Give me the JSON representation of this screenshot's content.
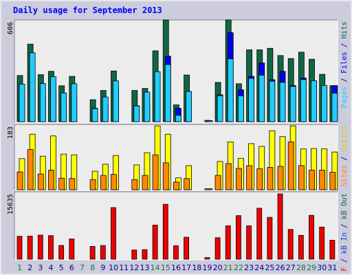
{
  "title": "Daily usage for September 2013",
  "colors": {
    "background": "#ccccdd",
    "plot": "#ececec",
    "title": "#0000ff",
    "pages": "#22ccff",
    "files": "#0000ee",
    "hits": "#116644",
    "visits": "#ffff00",
    "sites": "#ff8800",
    "kbin": "#1144cc",
    "kbout": "#116644",
    "kbf": "#ee0000",
    "weekend_day": "#117744",
    "weekday": "#000088"
  },
  "chart_data": [
    {
      "type": "bar",
      "categories": [
        "1",
        "2",
        "3",
        "4",
        "5",
        "6",
        "7",
        "8",
        "9",
        "10",
        "11",
        "12",
        "13",
        "14",
        "15",
        "16",
        "17",
        "18",
        "19",
        "20",
        "21",
        "22",
        "23",
        "24",
        "25",
        "26",
        "27",
        "28",
        "29",
        "30",
        "31"
      ],
      "ylim": [
        0,
        606
      ],
      "ytick_label": "606",
      "series": [
        {
          "name": "Hits",
          "values": [
            275,
            462,
            280,
            300,
            214,
            270,
            0,
            131,
            186,
            302,
            0,
            186,
            198,
            422,
            606,
            100,
            278,
            0,
            8,
            234,
            606,
            226,
            428,
            428,
            437,
            394,
            376,
            414,
            372,
            282,
            215
          ]
        },
        {
          "name": "Files",
          "values": [
            160,
            300,
            160,
            180,
            120,
            150,
            0,
            80,
            105,
            200,
            0,
            95,
            115,
            250,
            390,
            80,
            150,
            0,
            6,
            160,
            530,
            190,
            270,
            350,
            250,
            300,
            215,
            260,
            240,
            180,
            215
          ]
        },
        {
          "name": "Pages",
          "values": [
            224,
            410,
            227,
            268,
            171,
            226,
            0,
            78,
            147,
            243,
            0,
            94,
            176,
            298,
            340,
            38,
            180,
            0,
            3,
            155,
            374,
            154,
            258,
            277,
            241,
            234,
            210,
            251,
            244,
            216,
            170
          ]
        }
      ]
    },
    {
      "type": "bar",
      "categories": [
        "1",
        "2",
        "3",
        "4",
        "5",
        "6",
        "7",
        "8",
        "9",
        "10",
        "11",
        "12",
        "13",
        "14",
        "15",
        "16",
        "17",
        "18",
        "19",
        "20",
        "21",
        "22",
        "23",
        "24",
        "25",
        "26",
        "27",
        "28",
        "29",
        "30",
        "31"
      ],
      "ylim": [
        0,
        183
      ],
      "ytick_label": "183",
      "series": [
        {
          "name": "Visits",
          "values": [
            89,
            159,
            96,
            154,
            102,
            100,
            0,
            53,
            73,
            98,
            0,
            71,
            106,
            183,
            159,
            34,
            69,
            0,
            3,
            81,
            137,
            90,
            132,
            124,
            169,
            152,
            183,
            117,
            118,
            117,
            108
          ]
        },
        {
          "name": "Sites",
          "values": [
            51,
            115,
            45,
            56,
            33,
            32,
            0,
            29,
            41,
            44,
            0,
            29,
            41,
            100,
            77,
            22,
            32,
            0,
            2,
            41,
            75,
            61,
            69,
            60,
            64,
            67,
            137,
            69,
            56,
            56,
            50
          ]
        }
      ]
    },
    {
      "type": "bar",
      "categories": [
        "1",
        "2",
        "3",
        "4",
        "5",
        "6",
        "7",
        "8",
        "9",
        "10",
        "11",
        "12",
        "13",
        "14",
        "15",
        "16",
        "17",
        "18",
        "19",
        "20",
        "21",
        "22",
        "23",
        "24",
        "25",
        "26",
        "27",
        "28",
        "29",
        "30",
        "31"
      ],
      "ylim": [
        0,
        15635
      ],
      "ytick_label": "15635",
      "series": [
        {
          "name": "kB F",
          "values": [
            5480,
            5520,
            5760,
            5640,
            3280,
            4840,
            0,
            3050,
            3270,
            12350,
            0,
            2200,
            2280,
            8160,
            13140,
            3230,
            5260,
            0,
            390,
            5140,
            7990,
            10430,
            7990,
            12200,
            10020,
            15635,
            7120,
            5700,
            10500,
            7690,
            4540
          ]
        }
      ]
    }
  ],
  "right_labels": {
    "panel1": [
      {
        "text": "Pages",
        "color": "#22ccff"
      },
      {
        "text": " / ",
        "color": "#000088"
      },
      {
        "text": "Files",
        "color": "#0000ee"
      },
      {
        "text": " / ",
        "color": "#000088"
      },
      {
        "text": "Hits",
        "color": "#116644"
      }
    ],
    "panel2": [
      {
        "text": "Sites",
        "color": "#ff8800"
      },
      {
        "text": " / ",
        "color": "#000088"
      },
      {
        "text": "Visits",
        "color": "#ddcc00"
      }
    ],
    "panel3": [
      {
        "text": "kB F",
        "color": "#ee0000"
      },
      {
        "text": " / ",
        "color": "#000088"
      },
      {
        "text": "kB In",
        "color": "#1144cc"
      },
      {
        "text": " / ",
        "color": "#000088"
      },
      {
        "text": "kB Out",
        "color": "#116644"
      }
    ]
  },
  "weekend_days": [
    "1",
    "7",
    "8",
    "14",
    "15",
    "21",
    "22",
    "28",
    "29"
  ]
}
